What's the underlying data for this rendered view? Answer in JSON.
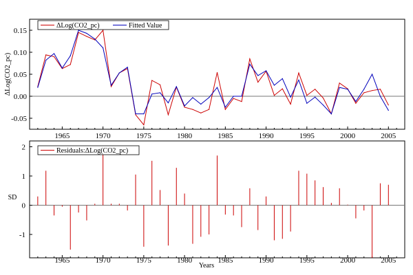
{
  "chart_data": [
    {
      "type": "line",
      "ylabel": "ΔLog(CO2_pc)",
      "xlim": [
        1961,
        2007
      ],
      "ylim": [
        -0.075,
        0.175
      ],
      "x_ticks": [
        1965,
        1970,
        1975,
        1980,
        1985,
        1990,
        1995,
        2000,
        2005
      ],
      "y_ticks": [
        -0.05,
        0.0,
        0.05,
        0.1,
        0.15
      ],
      "y_tick_labels": [
        "-0.05",
        "0.00",
        "0.05",
        "0.10",
        "0.15"
      ],
      "zero_line": true,
      "legend_position": "top-left",
      "x": [
        1962,
        1963,
        1964,
        1965,
        1966,
        1967,
        1968,
        1969,
        1970,
        1971,
        1972,
        1973,
        1974,
        1975,
        1976,
        1977,
        1978,
        1979,
        1980,
        1981,
        1982,
        1983,
        1984,
        1985,
        1986,
        1987,
        1988,
        1989,
        1990,
        1991,
        1992,
        1993,
        1994,
        1995,
        1996,
        1997,
        1998,
        1999,
        2000,
        2001,
        2002,
        2003,
        2004,
        2005
      ],
      "series": [
        {
          "name": "ΔLog(CO2_pc)",
          "color": "#cc0000",
          "values": [
            0.022,
            0.094,
            0.09,
            0.063,
            0.072,
            0.145,
            0.136,
            0.128,
            0.15,
            0.022,
            0.053,
            0.063,
            -0.042,
            -0.065,
            0.036,
            0.026,
            -0.042,
            0.021,
            -0.025,
            -0.03,
            -0.038,
            -0.03,
            0.054,
            -0.03,
            -0.005,
            -0.012,
            0.085,
            0.032,
            0.057,
            0.002,
            0.017,
            -0.018,
            0.053,
            0.002,
            0.016,
            -0.004,
            -0.04,
            0.03,
            0.017,
            -0.016,
            0.008,
            0.013,
            0.016,
            -0.02
          ]
        },
        {
          "name": "Fitted Value",
          "color": "#0000bb",
          "values": [
            0.02,
            0.082,
            0.097,
            0.064,
            0.092,
            0.15,
            0.143,
            0.13,
            0.11,
            0.025,
            0.053,
            0.066,
            -0.04,
            -0.04,
            0.005,
            0.008,
            -0.015,
            0.022,
            -0.022,
            -0.003,
            -0.018,
            -0.003,
            0.02,
            -0.025,
            0.0,
            0.0,
            0.073,
            0.047,
            0.058,
            0.025,
            0.04,
            -0.002,
            0.037,
            -0.016,
            -0.002,
            -0.02,
            -0.04,
            0.02,
            0.016,
            -0.012,
            0.016,
            0.05,
            0.0,
            -0.032
          ]
        }
      ]
    },
    {
      "type": "bar",
      "ylabel": "SD",
      "xlabel": "Years",
      "xlim": [
        1961,
        2007
      ],
      "ylim": [
        -1.8,
        2.2
      ],
      "x_ticks": [
        1965,
        1970,
        1975,
        1980,
        1985,
        1990,
        1995,
        2000,
        2005
      ],
      "y_ticks": [
        -1,
        0,
        1,
        2
      ],
      "y_tick_labels": [
        "-1",
        "0",
        "1",
        "2"
      ],
      "zero_line": true,
      "legend_position": "top-left",
      "x": [
        1962,
        1963,
        1964,
        1965,
        1966,
        1967,
        1968,
        1969,
        1970,
        1971,
        1972,
        1973,
        1974,
        1975,
        1976,
        1977,
        1978,
        1979,
        1980,
        1981,
        1982,
        1983,
        1984,
        1985,
        1986,
        1987,
        1988,
        1989,
        1990,
        1991,
        1992,
        1993,
        1994,
        1995,
        1996,
        1997,
        1998,
        1999,
        2000,
        2001,
        2002,
        2003,
        2004,
        2005
      ],
      "series": [
        {
          "name": "Residuals:ΔLog(CO2_pc)",
          "color": "#cc0000",
          "values": [
            0.3,
            1.18,
            -0.35,
            -0.05,
            -1.52,
            -0.25,
            -0.52,
            0.05,
            1.95,
            0.05,
            0.05,
            -0.18,
            1.05,
            -1.42,
            1.52,
            0.52,
            -1.38,
            1.28,
            0.4,
            -1.32,
            -1.08,
            -1.0,
            1.7,
            -0.32,
            -0.35,
            -0.75,
            0.58,
            -0.85,
            0.3,
            -1.2,
            -1.15,
            -0.9,
            1.18,
            1.08,
            0.85,
            0.62,
            0.08,
            0.58,
            0.02,
            -0.45,
            -0.18,
            -1.8,
            0.75,
            0.7
          ]
        }
      ]
    }
  ]
}
